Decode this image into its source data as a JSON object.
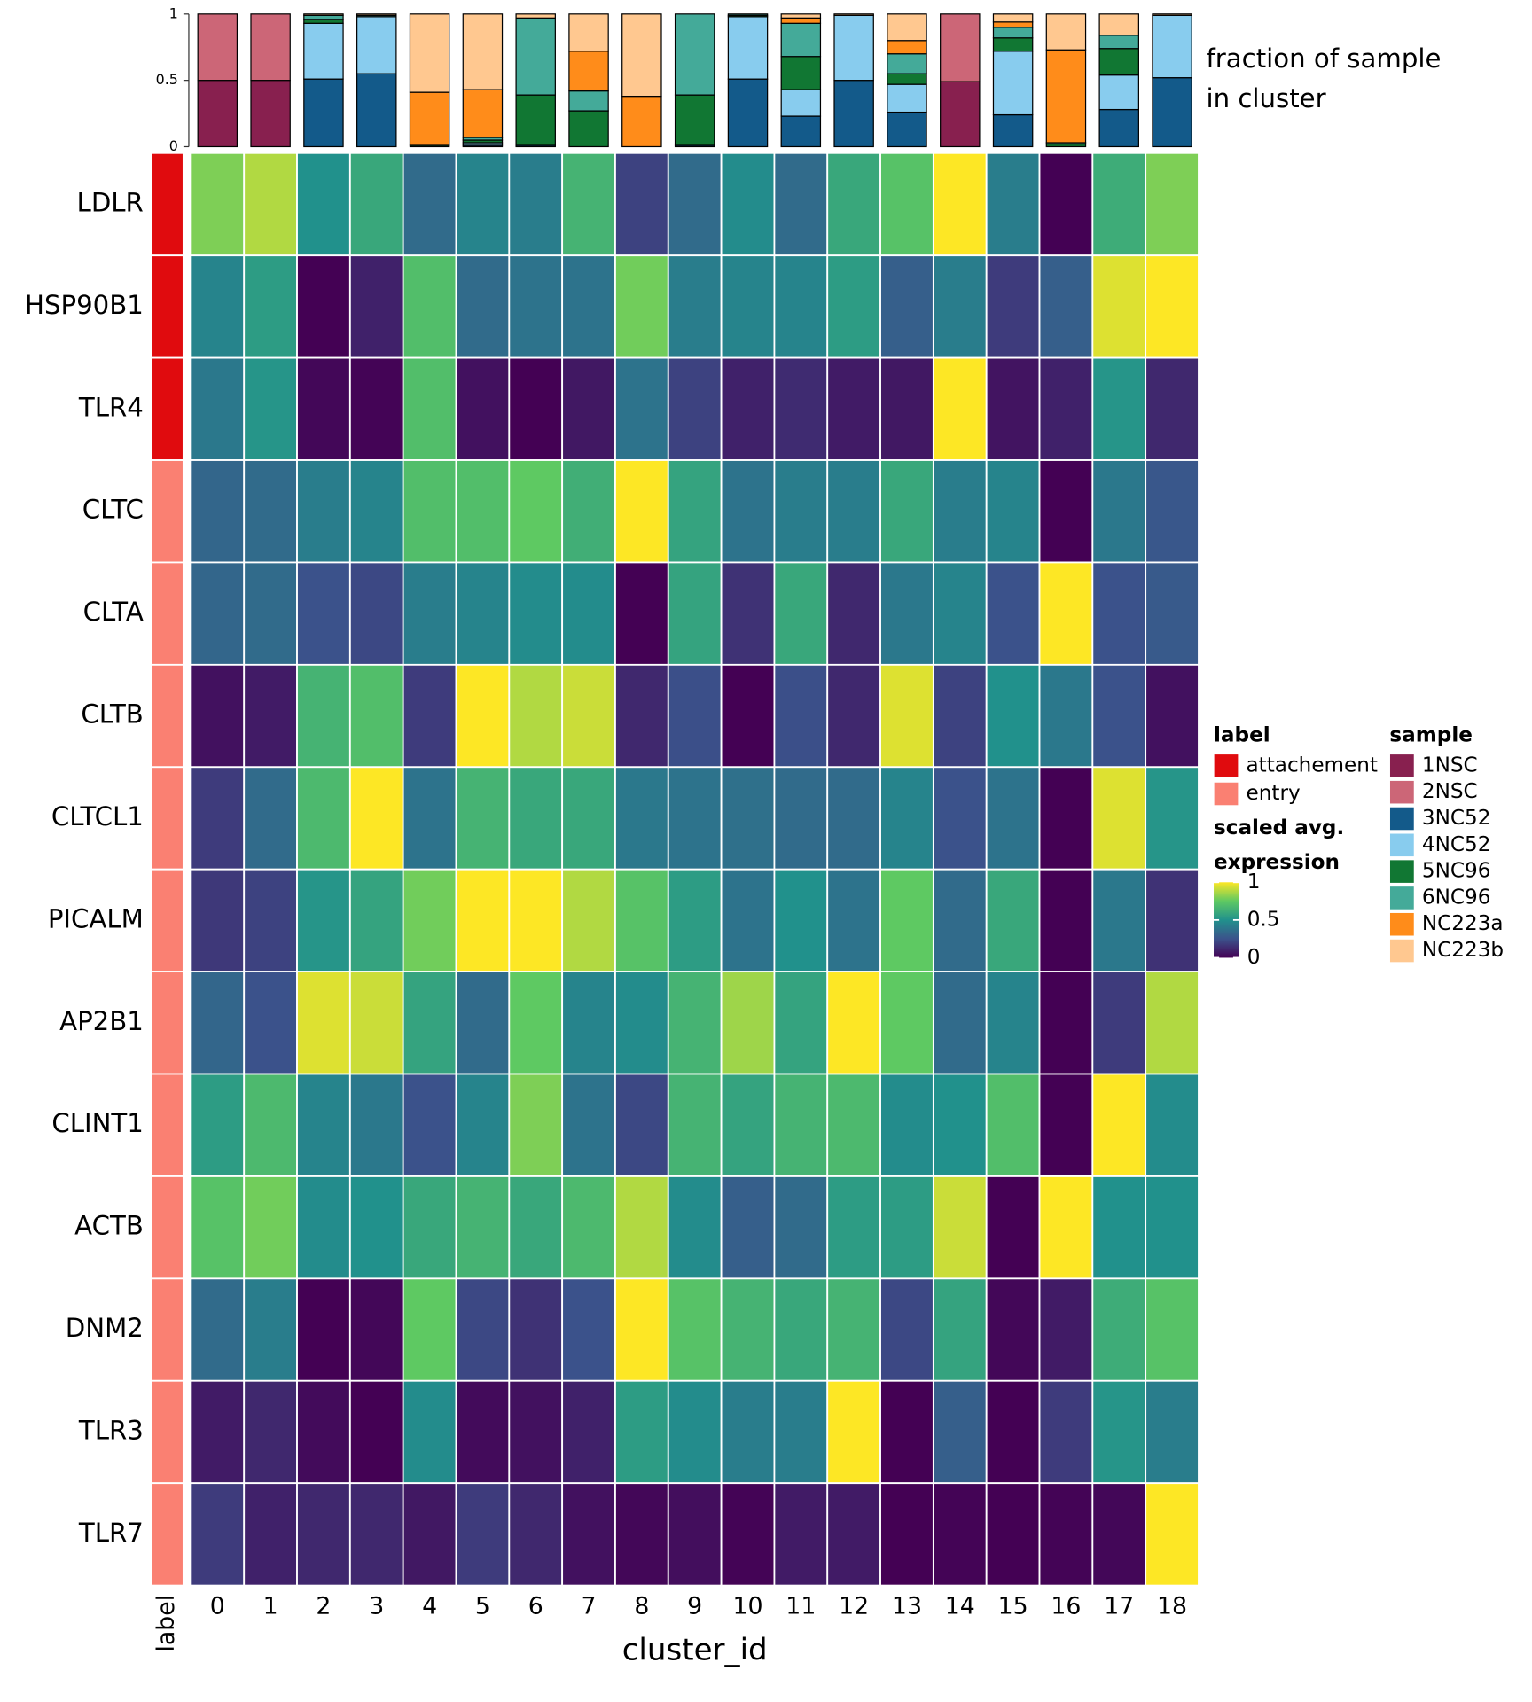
{
  "chart_data": [
    {
      "type": "stacked_bar",
      "title": [
        "fraction of sample",
        "in cluster"
      ],
      "legend_title": "sample",
      "ylim": [
        0,
        1
      ],
      "yticks": [
        0,
        0.5,
        1
      ],
      "series": [
        {
          "name": "1NSC",
          "color": "#88204f",
          "values": [
            0.5,
            0.5,
            0,
            0,
            0,
            0,
            0,
            0,
            0,
            0,
            0,
            0,
            0,
            0,
            0.49,
            0,
            0,
            0,
            0
          ]
        },
        {
          "name": "2NSC",
          "color": "#cc6677",
          "values": [
            0.5,
            0.5,
            0,
            0,
            0,
            0,
            0,
            0,
            0,
            0,
            0,
            0,
            0,
            0,
            0.51,
            0,
            0,
            0,
            0
          ]
        },
        {
          "name": "3NC52",
          "color": "#135a8a",
          "values": [
            0,
            0,
            0.51,
            0.55,
            0,
            0.01,
            0.01,
            0,
            0,
            0.01,
            0.51,
            0.23,
            0.5,
            0.26,
            0,
            0.24,
            0,
            0.28,
            0.52
          ]
        },
        {
          "name": "4NC52",
          "color": "#88ccee",
          "values": [
            0,
            0,
            0.42,
            0.43,
            0,
            0.02,
            0,
            0,
            0,
            0,
            0.47,
            0.2,
            0.49,
            0.21,
            0,
            0.48,
            0,
            0.26,
            0.47
          ]
        },
        {
          "name": "5NC96",
          "color": "#117733",
          "values": [
            0,
            0,
            0.03,
            0,
            0.01,
            0.02,
            0.38,
            0.27,
            0,
            0.38,
            0.01,
            0.25,
            0,
            0.08,
            0,
            0.1,
            0.02,
            0.2,
            0
          ]
        },
        {
          "name": "6NC96",
          "color": "#44aa99",
          "values": [
            0,
            0,
            0.03,
            0.01,
            0,
            0.02,
            0.58,
            0.15,
            0,
            0.61,
            0.01,
            0.25,
            0,
            0.15,
            0,
            0.08,
            0.01,
            0.1,
            0
          ]
        },
        {
          "name": "NC223a",
          "color": "#ff8c1a",
          "values": [
            0,
            0,
            0,
            0,
            0.4,
            0.36,
            0,
            0.3,
            0.38,
            0,
            0,
            0.04,
            0,
            0.1,
            0,
            0.04,
            0.7,
            0,
            0
          ]
        },
        {
          "name": "NC223b",
          "color": "#ffc890",
          "values": [
            0,
            0,
            0.01,
            0.01,
            0.59,
            0.57,
            0.03,
            0.28,
            0.62,
            0,
            0,
            0.03,
            0.01,
            0.2,
            0,
            0.06,
            0.27,
            0.16,
            0.01
          ]
        }
      ]
    },
    {
      "type": "heatmap",
      "xlabel": "cluster_id",
      "x": [
        "0",
        "1",
        "2",
        "3",
        "4",
        "5",
        "6",
        "7",
        "8",
        "9",
        "10",
        "11",
        "12",
        "13",
        "14",
        "15",
        "16",
        "17",
        "18"
      ],
      "y": [
        "LDLR",
        "HSP90B1",
        "TLR4",
        "CLTC",
        "CLTA",
        "CLTB",
        "CLTCL1",
        "PICALM",
        "AP2B1",
        "CLINT1",
        "ACTB",
        "DNM2",
        "TLR3",
        "TLR7"
      ],
      "values": [
        [
          0.8,
          0.88,
          0.5,
          0.6,
          0.35,
          0.45,
          0.42,
          0.65,
          0.2,
          0.35,
          0.48,
          0.35,
          0.6,
          0.72,
          1,
          0.42,
          0,
          0.62,
          0.8
        ],
        [
          0.45,
          0.55,
          0,
          0.1,
          0.7,
          0.35,
          0.38,
          0.38,
          0.78,
          0.42,
          0.45,
          0.45,
          0.55,
          0.3,
          0.42,
          0.18,
          0.3,
          0.95,
          1
        ],
        [
          0.4,
          0.52,
          0.02,
          0.01,
          0.7,
          0.05,
          0,
          0.07,
          0.38,
          0.2,
          0.1,
          0.13,
          0.08,
          0.07,
          1,
          0.06,
          0.1,
          0.52,
          0.12
        ],
        [
          0.33,
          0.35,
          0.42,
          0.45,
          0.7,
          0.7,
          0.75,
          0.63,
          1,
          0.58,
          0.38,
          0.42,
          0.42,
          0.6,
          0.42,
          0.45,
          0,
          0.4,
          0.27
        ],
        [
          0.33,
          0.35,
          0.25,
          0.22,
          0.42,
          0.45,
          0.48,
          0.48,
          0,
          0.58,
          0.15,
          0.6,
          0.12,
          0.4,
          0.45,
          0.25,
          1,
          0.25,
          0.28
        ],
        [
          0.05,
          0.08,
          0.65,
          0.7,
          0.18,
          1,
          0.88,
          0.92,
          0.12,
          0.24,
          0,
          0.24,
          0.12,
          0.95,
          0.2,
          0.5,
          0.4,
          0.25,
          0.05
        ],
        [
          0.18,
          0.35,
          0.68,
          1,
          0.38,
          0.65,
          0.6,
          0.6,
          0.4,
          0.38,
          0.37,
          0.35,
          0.35,
          0.45,
          0.25,
          0.38,
          0,
          0.95,
          0.52
        ],
        [
          0.17,
          0.2,
          0.52,
          0.58,
          0.78,
          1,
          1,
          0.88,
          0.72,
          0.55,
          0.38,
          0.5,
          0.38,
          0.75,
          0.35,
          0.6,
          0,
          0.4,
          0.15
        ],
        [
          0.33,
          0.25,
          0.95,
          0.92,
          0.58,
          0.35,
          0.75,
          0.45,
          0.48,
          0.65,
          0.85,
          0.58,
          1,
          0.75,
          0.35,
          0.45,
          0,
          0.18,
          0.88
        ],
        [
          0.55,
          0.68,
          0.45,
          0.4,
          0.25,
          0.45,
          0.8,
          0.38,
          0.22,
          0.65,
          0.58,
          0.65,
          0.68,
          0.48,
          0.5,
          0.7,
          0,
          1,
          0.48
        ],
        [
          0.72,
          0.78,
          0.48,
          0.5,
          0.6,
          0.65,
          0.6,
          0.68,
          0.88,
          0.48,
          0.3,
          0.35,
          0.55,
          0.55,
          0.92,
          0,
          1,
          0.5,
          0.5
        ],
        [
          0.35,
          0.42,
          0,
          0.02,
          0.75,
          0.22,
          0.15,
          0.25,
          1,
          0.72,
          0.65,
          0.6,
          0.65,
          0.22,
          0.58,
          0.02,
          0.08,
          0.62,
          0.72
        ],
        [
          0.08,
          0.12,
          0.03,
          0,
          0.48,
          0.03,
          0.05,
          0.1,
          0.55,
          0.48,
          0.42,
          0.42,
          1,
          0,
          0.3,
          0,
          0.18,
          0.52,
          0.42
        ],
        [
          0.18,
          0.1,
          0.12,
          0.12,
          0.07,
          0.18,
          0.12,
          0.05,
          0.02,
          0.04,
          0.01,
          0.08,
          0.08,
          0,
          0.01,
          0,
          0.01,
          0.02,
          1
        ]
      ],
      "row_annotation": {
        "title": "label",
        "values": [
          "attachement",
          "attachement",
          "attachement",
          "entry",
          "entry",
          "entry",
          "entry",
          "entry",
          "entry",
          "entry",
          "entry",
          "entry",
          "entry",
          "entry"
        ],
        "levels": [
          {
            "name": "attachement",
            "color": "#e00b0e"
          },
          {
            "name": "entry",
            "color": "#fa8072"
          }
        ]
      },
      "colorbar": {
        "title": [
          "scaled avg.",
          "expression"
        ],
        "lim": [
          0,
          1
        ],
        "ticks": [
          0,
          0.5,
          1
        ],
        "colors": [
          "#440154",
          "#3b528b",
          "#21918c",
          "#5ec962",
          "#fde725"
        ]
      }
    }
  ]
}
